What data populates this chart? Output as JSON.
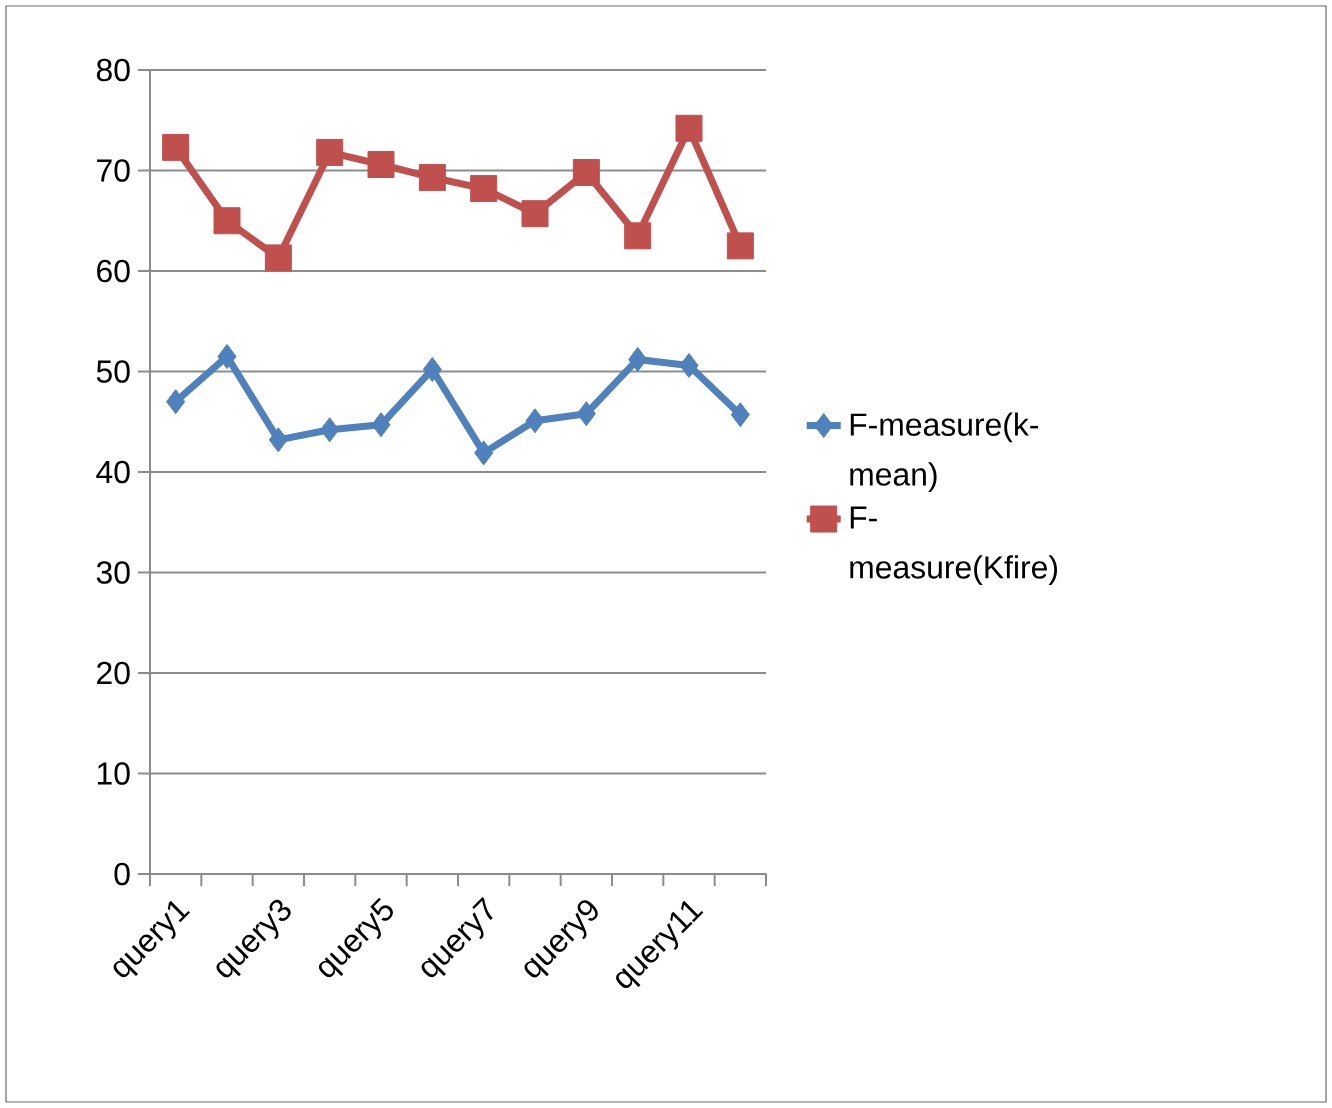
{
  "chart_data": {
    "type": "line",
    "categories": [
      "query1",
      null,
      "query3",
      null,
      "query5",
      null,
      "query7",
      null,
      "query9",
      null,
      "query11",
      null
    ],
    "series": [
      {
        "name": "F-measure(k-mean)",
        "color": "#4f81bd",
        "marker": "diamond",
        "values": [
          47,
          51.5,
          43.2,
          44.2,
          44.7,
          50.2,
          41.9,
          45.1,
          45.8,
          51.2,
          50.6,
          45.7
        ]
      },
      {
        "name": "F-measure(Kfire)",
        "color": "#c0504d",
        "marker": "square",
        "values": [
          72.3,
          65,
          61.3,
          71.8,
          70.6,
          69.3,
          68.2,
          65.7,
          69.8,
          63.5,
          74.2,
          62.5
        ]
      }
    ],
    "ylim": [
      0,
      80
    ],
    "yticks": [
      0,
      10,
      20,
      30,
      40,
      50,
      60,
      70,
      80
    ],
    "grid": "y",
    "legend": "right",
    "line_style": "solid"
  }
}
